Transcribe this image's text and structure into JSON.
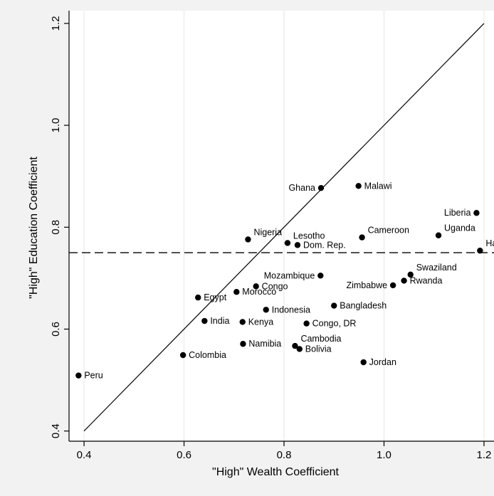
{
  "chart_data": {
    "type": "scatter",
    "xlabel": "\"High\" Wealth Coefficient",
    "ylabel": "\"High\" Education Coefficient",
    "xlim": [
      0.37,
      1.22
    ],
    "ylim": [
      0.38,
      1.225
    ],
    "xticks": [
      0.4,
      0.6,
      0.8,
      1.0,
      1.2
    ],
    "yticks": [
      0.4,
      0.6,
      0.8,
      1.0,
      1.2
    ],
    "xtick_labels": [
      "0.4",
      "0.6",
      "0.8",
      "1.0",
      "1.2"
    ],
    "ytick_labels": [
      "0.4",
      "0.6",
      "0.8",
      "1.0",
      "1.2"
    ],
    "grid": "vertical",
    "reference_lines": [
      {
        "type": "diagonal",
        "from": [
          0.4,
          0.4
        ],
        "to": [
          1.2,
          1.2
        ],
        "style": "solid"
      },
      {
        "type": "horizontal",
        "y": 0.75,
        "style": "dashed"
      }
    ],
    "points": [
      {
        "label": "Peru",
        "x": 0.389,
        "y": 0.509,
        "pos": "right"
      },
      {
        "label": "Colombia",
        "x": 0.598,
        "y": 0.549,
        "pos": "right"
      },
      {
        "label": "India",
        "x": 0.641,
        "y": 0.616,
        "pos": "right"
      },
      {
        "label": "Egypt",
        "x": 0.628,
        "y": 0.662,
        "pos": "right"
      },
      {
        "label": "Morocco",
        "x": 0.705,
        "y": 0.673,
        "pos": "right"
      },
      {
        "label": "Congo",
        "x": 0.744,
        "y": 0.684,
        "pos": "right"
      },
      {
        "label": "Kenya",
        "x": 0.717,
        "y": 0.614,
        "pos": "right"
      },
      {
        "label": "Namibia",
        "x": 0.718,
        "y": 0.571,
        "pos": "right"
      },
      {
        "label": "Indonesia",
        "x": 0.764,
        "y": 0.638,
        "pos": "right"
      },
      {
        "label": "Cambodia",
        "x": 0.822,
        "y": 0.567,
        "pos": "right-up"
      },
      {
        "label": "Bolivia",
        "x": 0.831,
        "y": 0.561,
        "pos": "right"
      },
      {
        "label": "Congo, DR",
        "x": 0.845,
        "y": 0.611,
        "pos": "right"
      },
      {
        "label": "Bangladesh",
        "x": 0.9,
        "y": 0.646,
        "pos": "right"
      },
      {
        "label": "Jordan",
        "x": 0.959,
        "y": 0.535,
        "pos": "right"
      },
      {
        "label": "Mozambique",
        "x": 0.873,
        "y": 0.705,
        "pos": "left"
      },
      {
        "label": "Zimbabwe",
        "x": 1.018,
        "y": 0.686,
        "pos": "left"
      },
      {
        "label": "Rwanda",
        "x": 1.04,
        "y": 0.695,
        "pos": "right"
      },
      {
        "label": "Swaziland",
        "x": 1.053,
        "y": 0.707,
        "pos": "right-up"
      },
      {
        "label": "Nigeria",
        "x": 0.728,
        "y": 0.776,
        "pos": "right-up"
      },
      {
        "label": "Lesotho",
        "x": 0.807,
        "y": 0.769,
        "pos": "right-up"
      },
      {
        "label": "Dom. Rep.",
        "x": 0.827,
        "y": 0.765,
        "pos": "right"
      },
      {
        "label": "Cameroon",
        "x": 0.956,
        "y": 0.78,
        "pos": "right-up"
      },
      {
        "label": "Uganda",
        "x": 1.109,
        "y": 0.784,
        "pos": "right-up"
      },
      {
        "label": "Haiti",
        "x": 1.192,
        "y": 0.754,
        "pos": "right-up"
      },
      {
        "label": "Liberia",
        "x": 1.185,
        "y": 0.828,
        "pos": "left"
      },
      {
        "label": "Ghana",
        "x": 0.874,
        "y": 0.877,
        "pos": "left"
      },
      {
        "label": "Malawi",
        "x": 0.949,
        "y": 0.881,
        "pos": "right"
      }
    ]
  }
}
